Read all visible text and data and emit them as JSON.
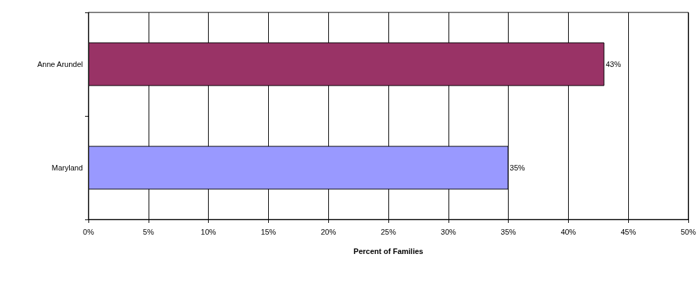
{
  "chart_data": {
    "type": "bar",
    "orientation": "horizontal",
    "xlabel": "Percent of Families",
    "categories": [
      "Anne Arundel",
      "Maryland"
    ],
    "values": [
      43,
      35
    ],
    "colors": [
      "#993366",
      "#9999ff"
    ],
    "value_labels": [
      "43%",
      "35%"
    ],
    "xlim": [
      0,
      50
    ],
    "xticks": [
      {
        "value": 0,
        "label": "0%"
      },
      {
        "value": 5,
        "label": "5%"
      },
      {
        "value": 10,
        "label": "10%"
      },
      {
        "value": 15,
        "label": "15%"
      },
      {
        "value": 20,
        "label": "20%"
      },
      {
        "value": 25,
        "label": "25%"
      },
      {
        "value": 30,
        "label": "30%"
      },
      {
        "value": 35,
        "label": "35%"
      },
      {
        "value": 40,
        "label": "40%"
      },
      {
        "value": 45,
        "label": "45%"
      },
      {
        "value": 50,
        "label": "50%"
      }
    ],
    "grid": "x"
  }
}
